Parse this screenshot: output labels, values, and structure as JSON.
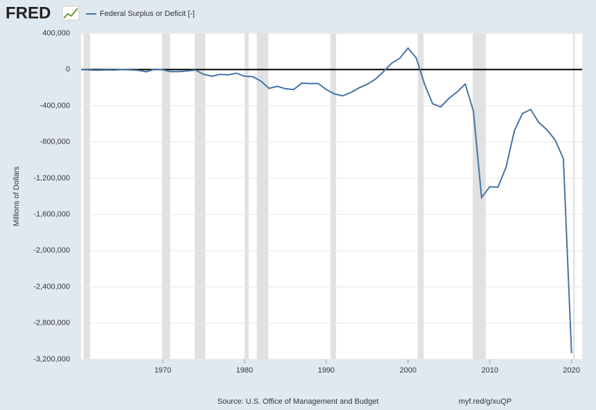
{
  "brand": "FRED",
  "chart_data": {
    "type": "line",
    "ylabel": "Millions of Dollars",
    "source": "Source: U.S. Office of Management and Budget",
    "link": "myf.red/g/xuQP",
    "x": [
      1960,
      1961,
      1962,
      1963,
      1964,
      1965,
      1966,
      1967,
      1968,
      1969,
      1970,
      1971,
      1972,
      1973,
      1974,
      1975,
      1976,
      1977,
      1978,
      1979,
      1980,
      1981,
      1982,
      1983,
      1984,
      1985,
      1986,
      1987,
      1988,
      1989,
      1990,
      1991,
      1992,
      1993,
      1994,
      1995,
      1996,
      1997,
      1998,
      1999,
      2000,
      2001,
      2002,
      2003,
      2004,
      2005,
      2006,
      2007,
      2008,
      2009,
      2010,
      2011,
      2012,
      2013,
      2014,
      2015,
      2016,
      2017,
      2018,
      2019,
      2020
    ],
    "series": [
      {
        "name": "Federal Surplus or Deficit [-]",
        "color": "#4572a7",
        "values": [
          301,
          -3335,
          -7146,
          -4756,
          -5915,
          -1411,
          -3698,
          -8643,
          -25161,
          3242,
          -2842,
          -23033,
          -23373,
          -14908,
          -6135,
          -53242,
          -73732,
          -53659,
          -59185,
          -40726,
          -73830,
          -78968,
          -127977,
          -207802,
          -185367,
          -212308,
          -221227,
          -149730,
          -155178,
          -152639,
          -221036,
          -269238,
          -290321,
          -255051,
          -203186,
          -163952,
          -107431,
          -21884,
          69270,
          125610,
          236241,
          128236,
          -157758,
          -377585,
          -412727,
          -318346,
          -248181,
          -160701,
          -458553,
          -1412688,
          -1294373,
          -1299599,
          -1076573,
          -679775,
          -484602,
          -441960,
          -584651,
          -665446,
          -779137,
          -983592,
          -3131917
        ]
      }
    ],
    "recessions": [
      [
        1960.3,
        1961.1
      ],
      [
        1969.9,
        1970.9
      ],
      [
        1973.9,
        1975.2
      ],
      [
        1980.0,
        1980.5
      ],
      [
        1981.5,
        1982.9
      ],
      [
        1990.5,
        1991.2
      ],
      [
        2001.2,
        2001.9
      ],
      [
        2007.9,
        2009.5
      ],
      [
        2020.2,
        2020.4
      ]
    ],
    "xlim": [
      1960,
      2021.3
    ],
    "xticks": [
      1970,
      1980,
      1990,
      2000,
      2010,
      2020
    ],
    "ylim": [
      -3200000,
      400000
    ],
    "yticks": [
      {
        "value": -3200000,
        "label": "-3,200,000"
      },
      {
        "value": -2800000,
        "label": "-2,800,000"
      },
      {
        "value": -2400000,
        "label": "-2,400,000"
      },
      {
        "value": -2000000,
        "label": "-2,000,000"
      },
      {
        "value": -1600000,
        "label": "-1,600,000"
      },
      {
        "value": -1200000,
        "label": "-1,200,000"
      },
      {
        "value": -800000,
        "label": "-800,000"
      },
      {
        "value": -400000,
        "label": "-400,000"
      },
      {
        "value": 0,
        "label": "0"
      },
      {
        "value": 400000,
        "label": "400,000"
      }
    ],
    "grid": true
  }
}
